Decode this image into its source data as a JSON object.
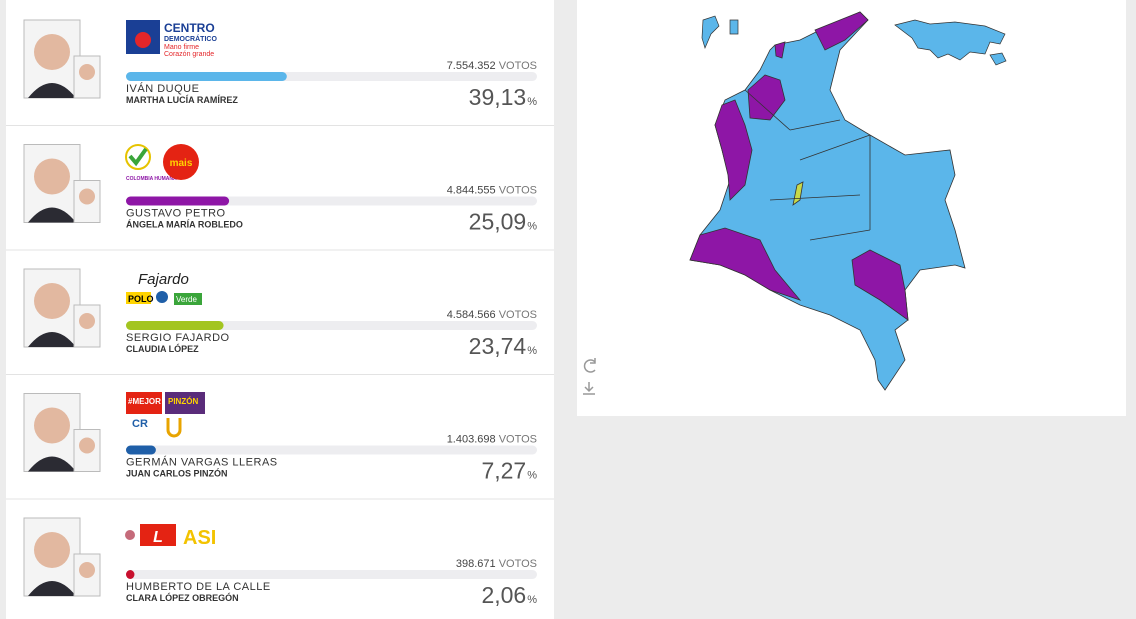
{
  "candidates": [
    {
      "name": "IVÁN DUQUE",
      "running_mate": "MARTHA LUCÍA RAMÍREZ",
      "votes": "7.554.352",
      "votes_unit": "VOTOS",
      "percent": 39.13,
      "percent_label": "39,13",
      "percent_unit": "%",
      "color": "#5bb6ea",
      "logo": [
        "CENTRO",
        "DEMOCRÁTICO",
        "Mano firme",
        "Corazón grande"
      ]
    },
    {
      "name": "GUSTAVO PETRO",
      "running_mate": "ÁNGELA MARÍA ROBLEDO",
      "votes": "4.844.555",
      "votes_unit": "VOTOS",
      "percent": 25.09,
      "percent_label": "25,09",
      "percent_unit": "%",
      "color": "#8e16a6",
      "logo": [
        "COLOMBIA HUMANA",
        "mais"
      ]
    },
    {
      "name": "SERGIO FAJARDO",
      "running_mate": "CLAUDIA LÓPEZ",
      "votes": "4.584.566",
      "votes_unit": "VOTOS",
      "percent": 23.74,
      "percent_label": "23,74",
      "percent_unit": "%",
      "color": "#a3c520",
      "logo": [
        "Fajardo",
        "POLO",
        "Verde"
      ]
    },
    {
      "name": "GERMÁN VARGAS LLERAS",
      "running_mate": "JUAN CARLOS PINZÓN",
      "votes": "1.403.698",
      "votes_unit": "VOTOS",
      "percent": 7.27,
      "percent_label": "7,27",
      "percent_unit": "%",
      "color": "#1f5fa8",
      "logo": [
        "#MEJOR",
        "PINZÓN",
        "CR"
      ]
    },
    {
      "name": "HUMBERTO DE LA CALLE",
      "running_mate": "CLARA LÓPEZ OBREGÓN",
      "votes": "398.671",
      "votes_unit": "VOTOS",
      "percent": 2.06,
      "percent_label": "2,06",
      "percent_unit": "%",
      "color": "#c8102e",
      "logo": [
        "L",
        "ASI"
      ]
    }
  ]
}
